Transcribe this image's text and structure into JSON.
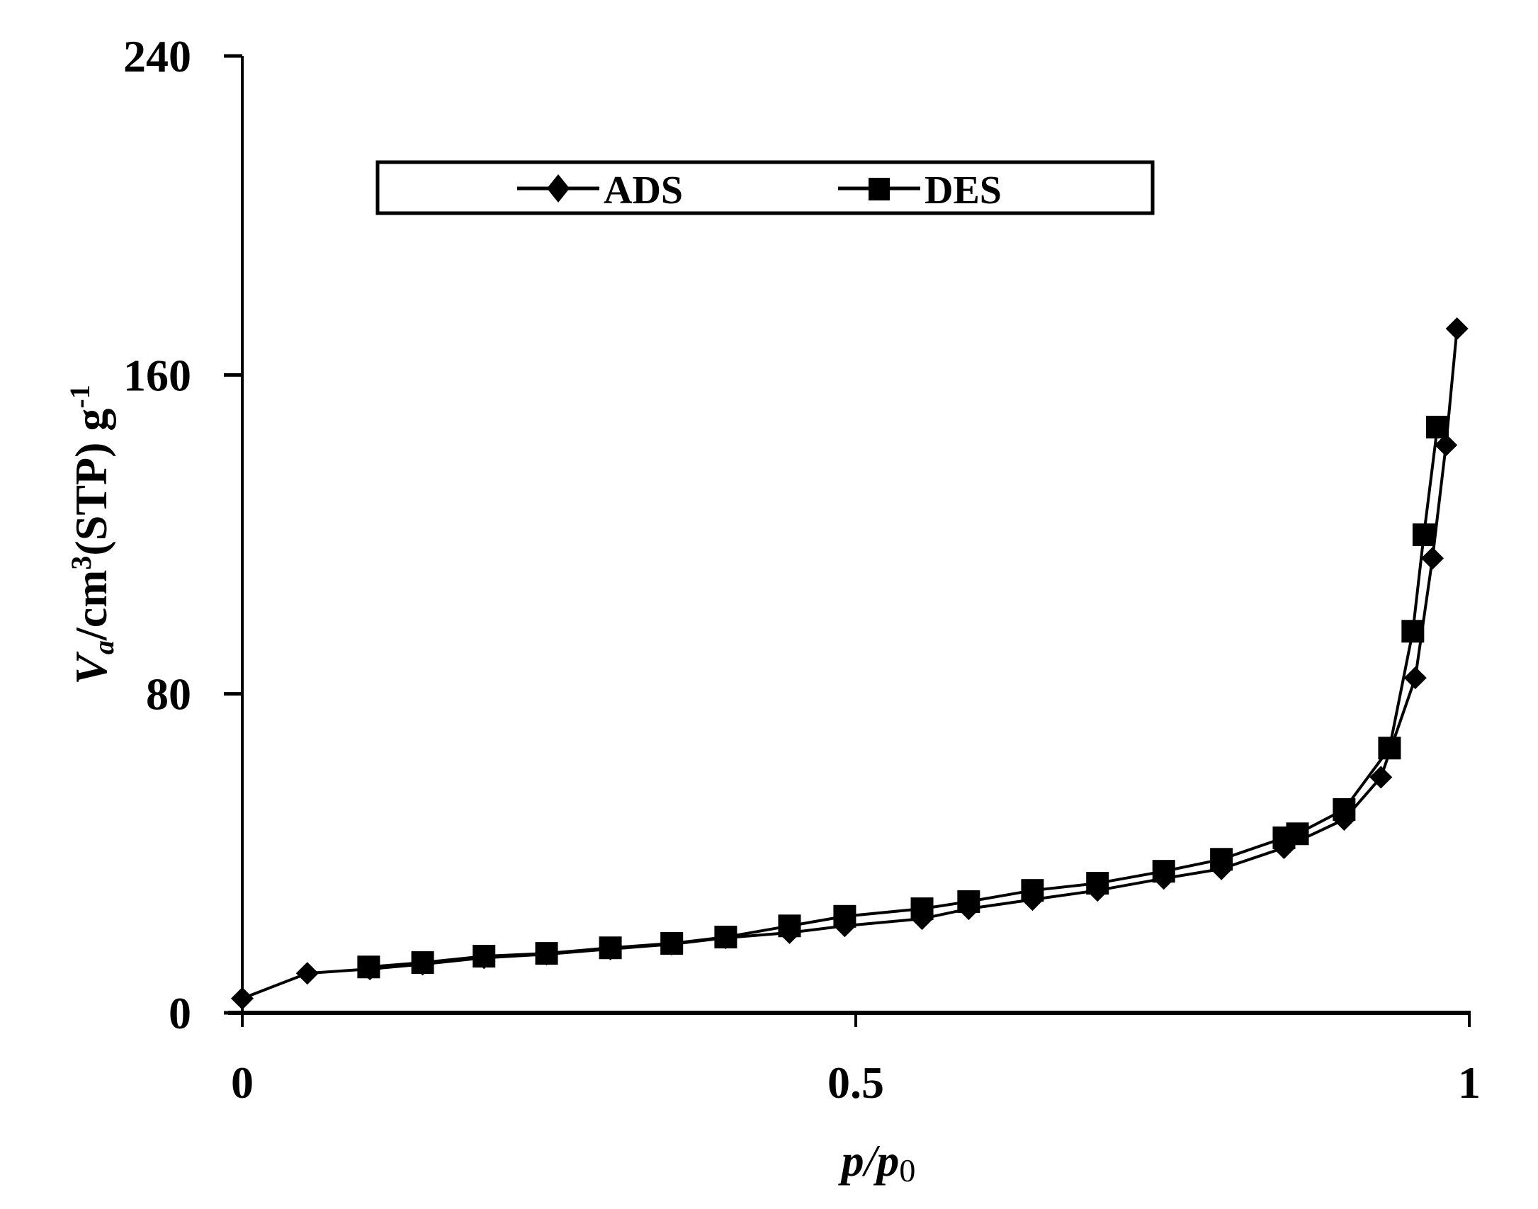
{
  "chart_data": {
    "type": "line",
    "title": "",
    "xlabel": "p/p0",
    "ylabel": "Va/cm3(STP) g-1",
    "xlim": [
      0,
      1
    ],
    "ylim": [
      0,
      240
    ],
    "xticks": [
      "0",
      "0.5",
      "1"
    ],
    "yticks": [
      "0",
      "80",
      "160",
      "240"
    ],
    "grid": false,
    "legend_position": "top-center",
    "series": [
      {
        "name": "ADS",
        "marker": "diamond",
        "x": [
          0,
          0.053,
          0.104,
          0.147,
          0.197,
          0.248,
          0.3,
          0.35,
          0.394,
          0.446,
          0.491,
          0.554,
          0.592,
          0.644,
          0.697,
          0.751,
          0.798,
          0.849,
          0.898,
          0.928,
          0.956,
          0.97,
          0.981,
          0.99
        ],
        "values": [
          3.6,
          9.9,
          11.0,
          12.2,
          13.8,
          14.7,
          16.0,
          17.2,
          18.8,
          20.1,
          21.8,
          23.6,
          26.1,
          28.4,
          30.7,
          33.7,
          36.1,
          41.4,
          48.5,
          59.1,
          84.0,
          114.0,
          142.4,
          171.6
        ]
      },
      {
        "name": "DES",
        "marker": "square",
        "x": [
          0.103,
          0.147,
          0.197,
          0.248,
          0.3,
          0.35,
          0.394,
          0.446,
          0.491,
          0.554,
          0.592,
          0.644,
          0.697,
          0.751,
          0.798,
          0.849,
          0.86,
          0.898,
          0.935,
          0.954,
          0.963,
          0.974
        ],
        "values": [
          11.5,
          12.6,
          14.2,
          14.9,
          16.3,
          17.4,
          19.0,
          21.8,
          24.2,
          26.1,
          27.9,
          30.7,
          32.5,
          35.5,
          38.5,
          43.9,
          44.9,
          51.0,
          66.4,
          95.7,
          119.9,
          146.9
        ]
      }
    ]
  },
  "axes": {
    "x_title_main": "p",
    "x_title_slash": "/",
    "x_title_p": "p",
    "x_title_sub": "0",
    "y_title_V": "V",
    "y_title_sub": "a",
    "y_title_mid": "/cm",
    "y_title_sup3": "3",
    "y_title_stp": "(STP) g",
    "y_title_sup": "-1"
  },
  "legend": {
    "items": [
      "ADS",
      "DES"
    ]
  }
}
